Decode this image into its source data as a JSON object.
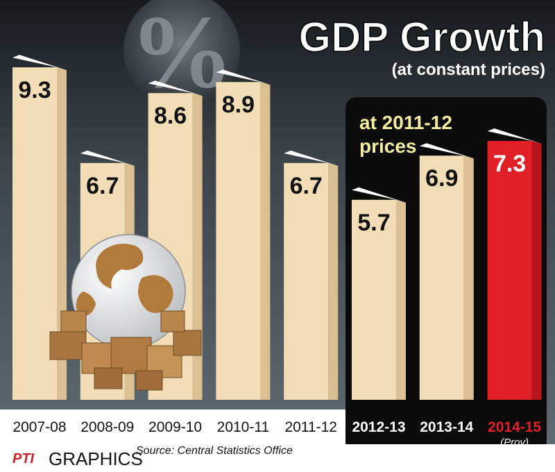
{
  "chart_data": {
    "type": "bar",
    "title": "GDP Growth",
    "subtitle": "(at constant  prices)",
    "categories": [
      "2007-08",
      "2008-09",
      "2009-10",
      "2010-11",
      "2011-12",
      "2012-13",
      "2013-14",
      "2014-15"
    ],
    "values": [
      9.3,
      6.7,
      8.6,
      8.9,
      6.7,
      5.7,
      6.9,
      7.3
    ],
    "value_labels": [
      "9.3",
      "6.7",
      "8.6",
      "8.9",
      "6.7",
      "5.7",
      "6.9",
      "7.3"
    ],
    "highlight_group_label": "at 2011-12 prices",
    "highlight_group_line1": "at 2011-12",
    "highlight_group_line2": "prices",
    "highlight_group_categories": [
      "2012-13",
      "2013-14",
      "2014-15"
    ],
    "annotations": [
      {
        "category": "2014-15",
        "text": "(Prov)"
      }
    ],
    "xlabel": "",
    "ylabel": "",
    "ylim": [
      0,
      10.5
    ],
    "grid": false,
    "legend": "none"
  },
  "decorations": {
    "percent_symbol": "%"
  },
  "colors": {
    "bar": "#f3ddb6",
    "bar_side": "#d9bf92",
    "bar_top": "#ffffff",
    "highlight_bar": "#e11f26",
    "highlight_bar_side": "#b8141b",
    "highlight_panel": "#0b0b0b",
    "highlight_text": "#f5eea0",
    "brand_red": "#d0202a"
  },
  "footer": {
    "logo": "PTI",
    "label": "GRAPHICS",
    "source": "Source: Central Statistics Office"
  }
}
